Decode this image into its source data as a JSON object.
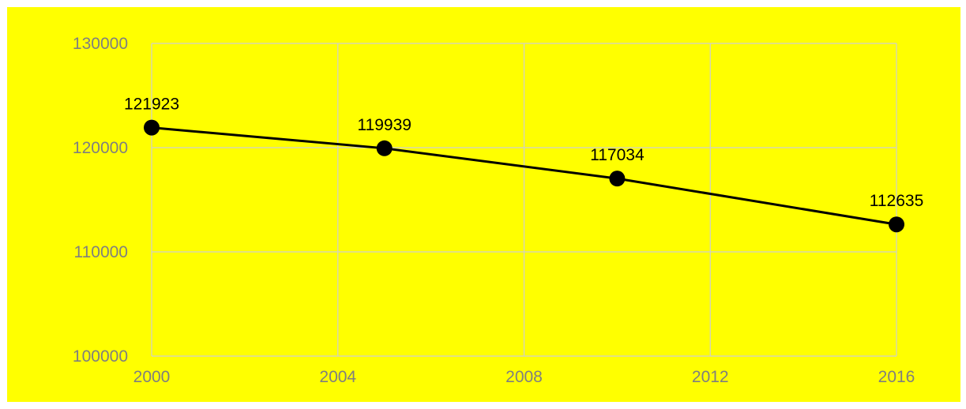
{
  "colors": {
    "background": "#ffff00",
    "grid": "#cfcfcf",
    "tick_text": "#7f7f7f",
    "series": "#000000"
  },
  "chart_data": {
    "type": "line",
    "title": "",
    "xlabel": "",
    "ylabel": "",
    "xlim": [
      2000,
      2016
    ],
    "ylim": [
      100000,
      130000
    ],
    "x_ticks": [
      2000,
      2004,
      2008,
      2012,
      2016
    ],
    "y_ticks": [
      100000,
      110000,
      120000,
      130000
    ],
    "grid": true,
    "legend": "none",
    "series": [
      {
        "x": [
          2000,
          2005,
          2010,
          2016
        ],
        "y": [
          121923,
          119939,
          117034,
          112635
        ],
        "data_labels": [
          "121923",
          "119939",
          "117034",
          "112635"
        ]
      }
    ]
  }
}
